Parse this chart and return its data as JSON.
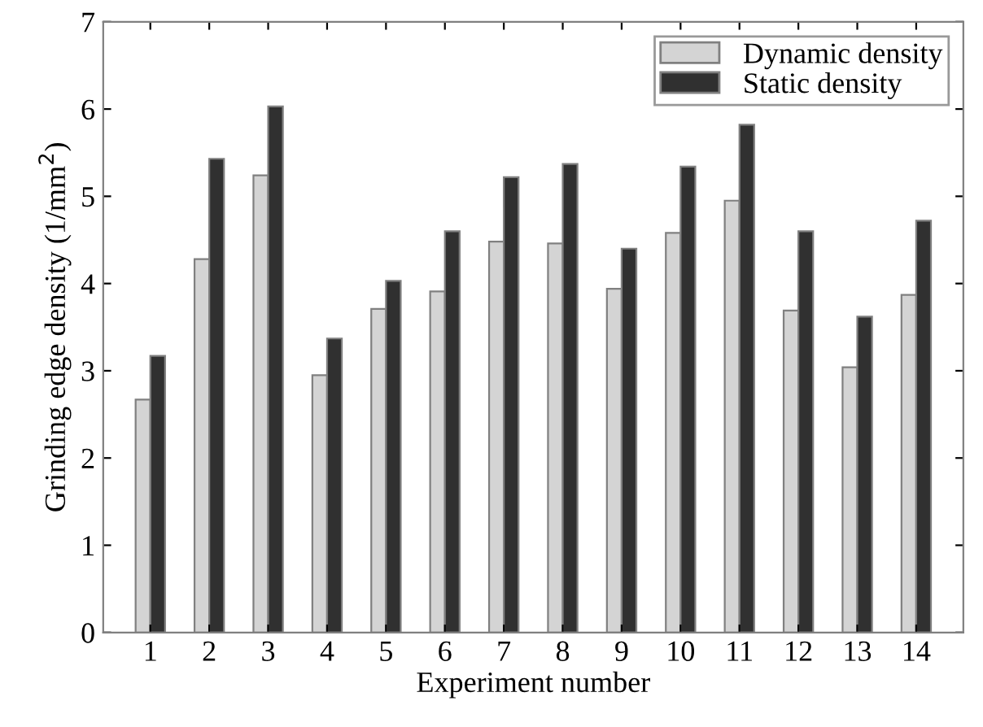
{
  "chart_data": {
    "type": "bar",
    "xlabel": "Experiment number",
    "ylabel": "Grinding edge density (1/mm$^{2}$)",
    "categories": [
      "1",
      "2",
      "3",
      "4",
      "5",
      "6",
      "7",
      "8",
      "9",
      "10",
      "11",
      "12",
      "13",
      "14"
    ],
    "series": [
      {
        "name": "Dynamic density",
        "color": "#d4d4d4",
        "values": [
          2.67,
          4.28,
          5.24,
          2.95,
          3.71,
          3.91,
          4.48,
          4.46,
          3.94,
          4.58,
          4.95,
          3.69,
          3.04,
          3.87
        ]
      },
      {
        "name": "Static density",
        "color": "#303030",
        "values": [
          3.17,
          5.43,
          6.03,
          3.37,
          4.03,
          4.6,
          5.22,
          5.37,
          4.4,
          5.34,
          5.82,
          4.6,
          3.62,
          4.72
        ]
      }
    ],
    "ylim": [
      0,
      7
    ],
    "yticks": [
      0,
      1,
      2,
      3,
      4,
      5,
      6,
      7
    ],
    "grid": false,
    "legend": "top right"
  }
}
